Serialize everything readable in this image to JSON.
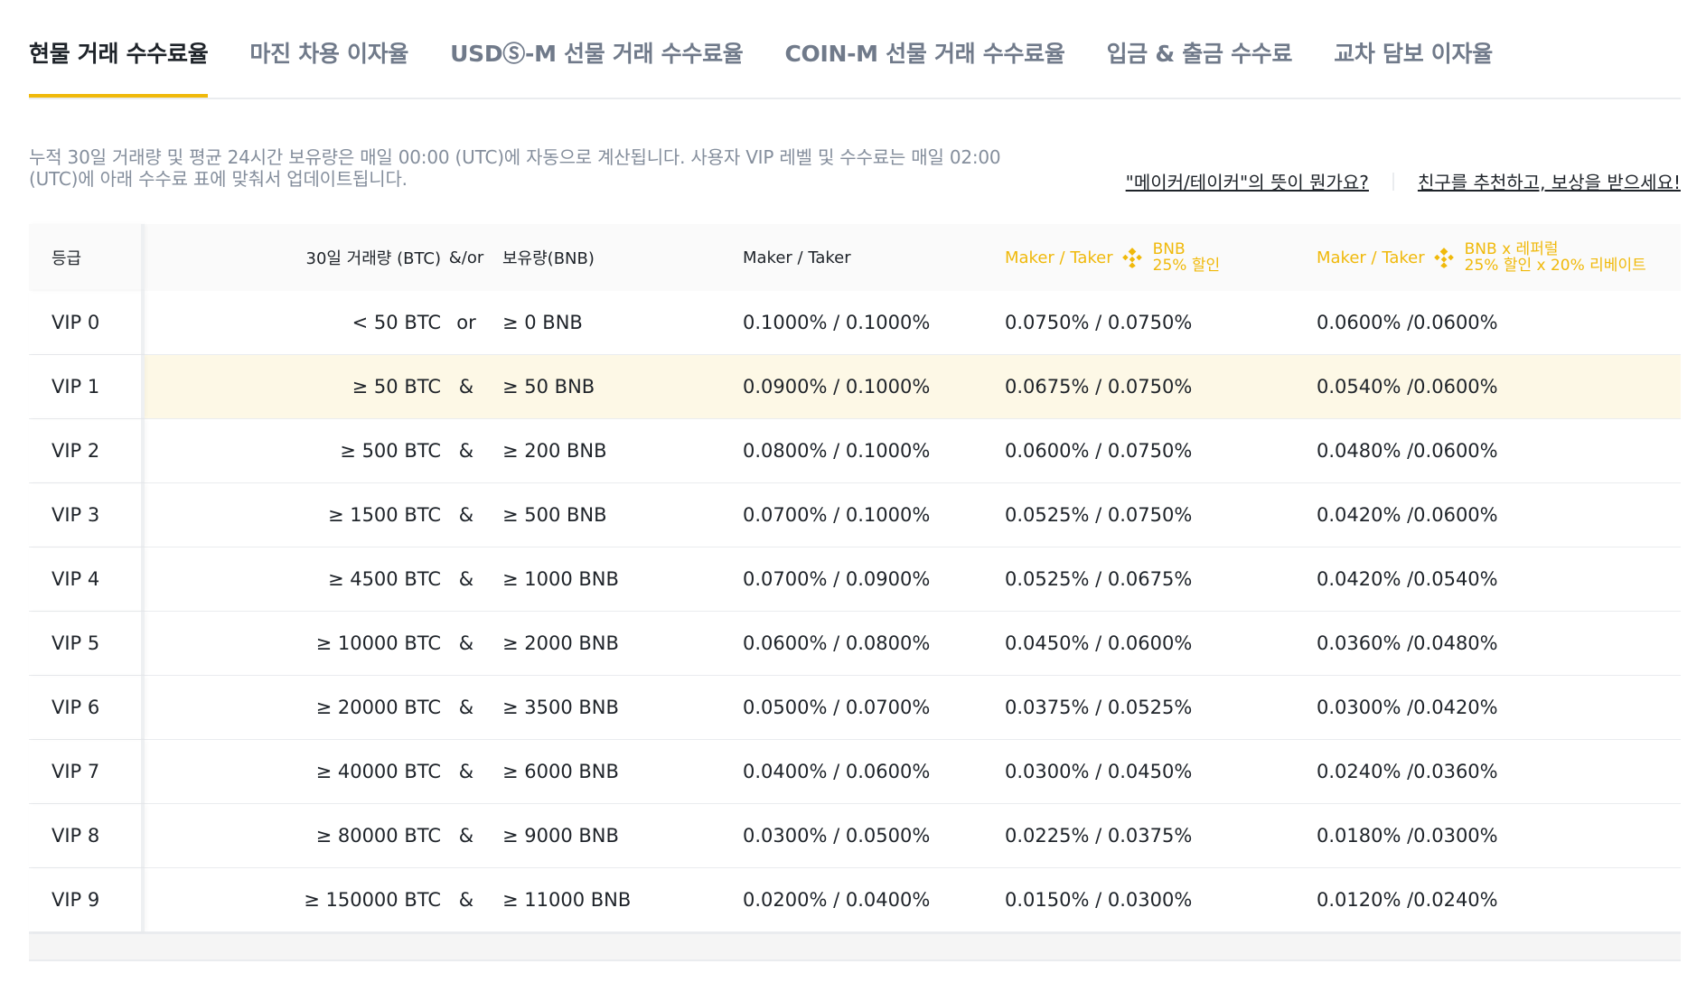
{
  "tabs": [
    {
      "label": "현물 거래 수수료율",
      "active": true
    },
    {
      "label": "마진 차용 이자율",
      "active": false
    },
    {
      "label": "USDⓈ-M 선물 거래 수수료율",
      "active": false
    },
    {
      "label": "COIN-M 선물 거래 수수료율",
      "active": false
    },
    {
      "label": "입금 & 출금 수수료",
      "active": false
    },
    {
      "label": "교차 담보 이자율",
      "active": false
    }
  ],
  "info": {
    "line1": "누적 30일 거래량 및 평균 24시간 보유량은 매일 00:00 (UTC)에 자동으로 계산됩니다. 사용자 VIP 레벨 및 수수료는 매일 02:00",
    "line2": "(UTC)에 아래 수수료 표에 맞춰서 업데이트됩니다."
  },
  "links": {
    "maker_taker": "\"메이커/테이커\"의 뜻이 뭔가요?",
    "referral": "친구를 추천하고, 보상을 받으세요!"
  },
  "table": {
    "headers": {
      "grade": "등급",
      "volume": "30일 거래량 (BTC)",
      "andor": "&/or",
      "holding": "보유량(BNB)",
      "maker_taker": "Maker / Taker",
      "maker_taker_bnb": "Maker / Taker",
      "bnb_label_1": "BNB",
      "bnb_label_2": "25% 할인",
      "maker_taker_ref": "Maker / Taker",
      "ref_label_1": "BNB x 레퍼럴",
      "ref_label_2": "25% 할인 x 20% 리베이트"
    },
    "rows": [
      {
        "grade": "VIP 0",
        "volume": "< 50 BTC",
        "andor": "or",
        "holding": "≥ 0 BNB",
        "mt": "0.1000% / 0.1000%",
        "mt_bnb": "0.0750% / 0.0750%",
        "mt_ref": "0.0600% /0.0600%"
      },
      {
        "grade": "VIP 1",
        "volume": "≥ 50 BTC",
        "andor": "&",
        "holding": "≥ 50 BNB",
        "mt": "0.0900% / 0.1000%",
        "mt_bnb": "0.0675% / 0.0750%",
        "mt_ref": "0.0540% /0.0600%"
      },
      {
        "grade": "VIP 2",
        "volume": "≥ 500 BTC",
        "andor": "&",
        "holding": "≥ 200 BNB",
        "mt": "0.0800% / 0.1000%",
        "mt_bnb": "0.0600% / 0.0750%",
        "mt_ref": "0.0480% /0.0600%"
      },
      {
        "grade": "VIP 3",
        "volume": "≥ 1500 BTC",
        "andor": "&",
        "holding": "≥ 500 BNB",
        "mt": "0.0700% / 0.1000%",
        "mt_bnb": "0.0525% / 0.0750%",
        "mt_ref": "0.0420% /0.0600%"
      },
      {
        "grade": "VIP 4",
        "volume": "≥ 4500 BTC",
        "andor": "&",
        "holding": "≥ 1000 BNB",
        "mt": "0.0700% / 0.0900%",
        "mt_bnb": "0.0525% / 0.0675%",
        "mt_ref": "0.0420% /0.0540%"
      },
      {
        "grade": "VIP 5",
        "volume": "≥ 10000 BTC",
        "andor": "&",
        "holding": "≥ 2000 BNB",
        "mt": "0.0600% / 0.0800%",
        "mt_bnb": "0.0450% / 0.0600%",
        "mt_ref": "0.0360% /0.0480%"
      },
      {
        "grade": "VIP 6",
        "volume": "≥ 20000 BTC",
        "andor": "&",
        "holding": "≥ 3500 BNB",
        "mt": "0.0500% / 0.0700%",
        "mt_bnb": "0.0375% / 0.0525%",
        "mt_ref": "0.0300% /0.0420%"
      },
      {
        "grade": "VIP 7",
        "volume": "≥ 40000 BTC",
        "andor": "&",
        "holding": "≥ 6000 BNB",
        "mt": "0.0400% / 0.0600%",
        "mt_bnb": "0.0300% / 0.0450%",
        "mt_ref": "0.0240% /0.0360%"
      },
      {
        "grade": "VIP 8",
        "volume": "≥ 80000 BTC",
        "andor": "&",
        "holding": "≥ 9000 BNB",
        "mt": "0.0300% / 0.0500%",
        "mt_bnb": "0.0225% / 0.0375%",
        "mt_ref": "0.0180% /0.0300%"
      },
      {
        "grade": "VIP 9",
        "volume": "≥ 150000 BTC",
        "andor": "&",
        "holding": "≥ 11000 BNB",
        "mt": "0.0200% / 0.0400%",
        "mt_bnb": "0.0150% / 0.0300%",
        "mt_ref": "0.0120% /0.0240%"
      }
    ]
  },
  "colors": {
    "accent": "#f0b90b",
    "highlight_row": "#fdf8e6",
    "muted_text": "#848e9c"
  }
}
